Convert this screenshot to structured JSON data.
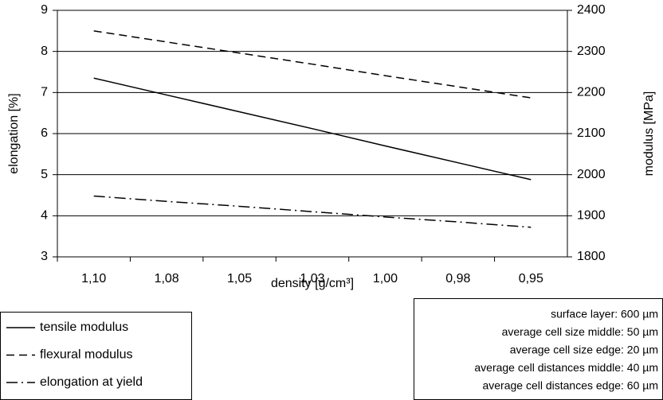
{
  "chart_data": {
    "type": "line",
    "categories": [
      "1,10",
      "1,08",
      "1,05",
      "1,03",
      "1,00",
      "0,98",
      "0,95"
    ],
    "xlabel": "density [g/cm³]",
    "ylabel": "elongation [%]",
    "y2label": "modulus [MPa]",
    "ylim": [
      3,
      9
    ],
    "yticks": [
      3,
      4,
      5,
      6,
      7,
      8,
      9
    ],
    "y2lim": [
      1800,
      2400
    ],
    "y2ticks": [
      1800,
      1900,
      2000,
      2100,
      2200,
      2300,
      2400
    ],
    "grid": true,
    "series": [
      {
        "name": "tensile modulus",
        "color": "#000000",
        "style": "solid",
        "axis": "y2",
        "values": [
          2235,
          2194,
          2153,
          2112,
          2070,
          2029,
          1988
        ]
      },
      {
        "name": "flexural modulus",
        "color": "#000000",
        "style": "dashed",
        "axis": "y2",
        "values": [
          2350,
          2323,
          2296,
          2269,
          2241,
          2214,
          2187
        ]
      },
      {
        "name": "elongation at yield",
        "color": "#000000",
        "style": "dashdot",
        "values": [
          4.48,
          4.35,
          4.23,
          4.1,
          3.97,
          3.85,
          3.72
        ]
      }
    ],
    "annotations": [
      "surface layer: 600 µm",
      "average cell size middle: 50 µm",
      "average cell size edge: 20 µm",
      "average cell distances middle: 40 µm",
      "average cell distances edge: 60 µm"
    ]
  }
}
